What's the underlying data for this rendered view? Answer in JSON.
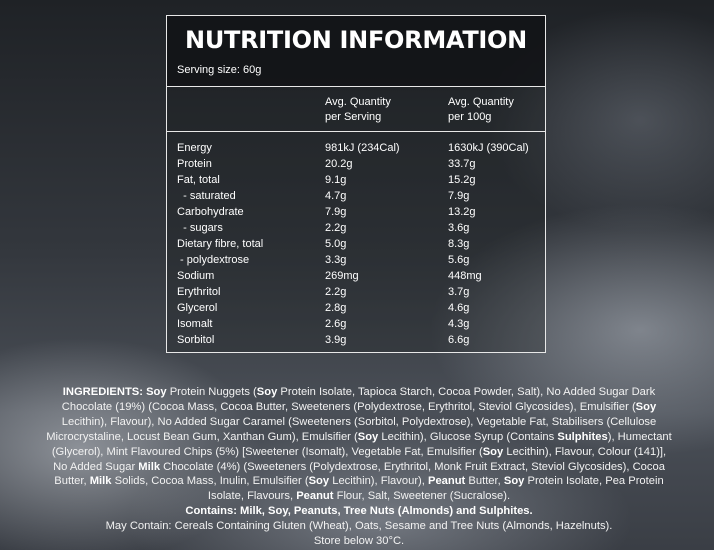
{
  "title": "NUTRITION INFORMATION",
  "serving_size": "Serving size: 60g",
  "table": {
    "headers": [
      "Avg. Quantity\nper Serving",
      "Avg. Quantity\nper 100g"
    ],
    "rows": [
      [
        "Energy",
        "981kJ (234Cal)",
        "1630kJ (390Cal)"
      ],
      [
        "Protein",
        "20.2g",
        "33.7g"
      ],
      [
        "Fat, total",
        "9.1g",
        "15.2g"
      ],
      [
        "  - saturated",
        "4.7g",
        "7.9g"
      ],
      [
        "Carbohydrate",
        "7.9g",
        "13.2g"
      ],
      [
        "  - sugars",
        "2.2g",
        "3.6g"
      ],
      [
        "Dietary fibre, total",
        "5.0g",
        "8.3g"
      ],
      [
        " - polydextrose",
        "3.3g",
        "5.6g"
      ],
      [
        "Sodium",
        "269mg",
        "448mg"
      ],
      [
        "Erythritol",
        "2.2g",
        "3.7g"
      ],
      [
        "Glycerol",
        "2.8g",
        "4.6g"
      ],
      [
        "Isomalt",
        "2.6g",
        "4.3g"
      ],
      [
        "Sorbitol",
        "3.9g",
        "6.6g"
      ]
    ]
  },
  "ingredients": {
    "segments": [
      {
        "text": "INGREDIENTS: Soy",
        "bold": true
      },
      {
        "text": " Protein Nuggets (",
        "bold": false
      },
      {
        "text": "Soy",
        "bold": true
      },
      {
        "text": " Protein Isolate, Tapioca Starch, Cocoa Powder, Salt), No Added Sugar Dark Chocolate (19%) (Cocoa Mass, Cocoa Butter, Sweeteners (Polydextrose, Erythritol, Steviol Glycosides), Emulsifier (",
        "bold": false
      },
      {
        "text": "Soy",
        "bold": true
      },
      {
        "text": " Lecithin), Flavour), No Added Sugar Caramel (Sweeteners (Sorbitol, Polydextrose), Vegetable Fat, Stabilisers (Cellulose Microcrystaline, Locust Bean Gum, Xanthan Gum), Emulsifier (",
        "bold": false
      },
      {
        "text": "Soy",
        "bold": true
      },
      {
        "text": " Lecithin), Glucose Syrup (Contains ",
        "bold": false
      },
      {
        "text": "Sulphites",
        "bold": true
      },
      {
        "text": "), Humectant (Glycerol), Mint Flavoured Chips (5%) [Sweetener (Isomalt), Vegetable Fat, Emulsifier (",
        "bold": false
      },
      {
        "text": "Soy",
        "bold": true
      },
      {
        "text": " Lecithin), Flavour, Colour (141)], No Added Sugar ",
        "bold": false
      },
      {
        "text": "Milk",
        "bold": true
      },
      {
        "text": " Chocolate (4%) (Sweeteners (Polydextrose, Erythritol, Monk Fruit Extract, Steviol Glycosides), Cocoa Butter, ",
        "bold": false
      },
      {
        "text": "Milk",
        "bold": true
      },
      {
        "text": " Solids, Cocoa Mass, Inulin, Emulsifier (",
        "bold": false
      },
      {
        "text": "Soy",
        "bold": true
      },
      {
        "text": " Lecithin), Flavour), ",
        "bold": false
      },
      {
        "text": "Peanut",
        "bold": true
      },
      {
        "text": " Butter, ",
        "bold": false
      },
      {
        "text": "Soy",
        "bold": true
      },
      {
        "text": " Protein Isolate, Pea Protein Isolate, Flavours, ",
        "bold": false
      },
      {
        "text": "Peanut",
        "bold": true
      },
      {
        "text": " Flour, Salt, Sweetener (Sucralose).",
        "bold": false
      }
    ],
    "contains": "Contains: Milk, Soy, Peanuts, Tree Nuts (Almonds) and Sulphites.",
    "may_contain": "May Contain: Cereals Containing Gluten (Wheat), Oats, Sesame and Tree Nuts (Almonds, Hazelnuts).",
    "storage": "Store below 30°C."
  }
}
